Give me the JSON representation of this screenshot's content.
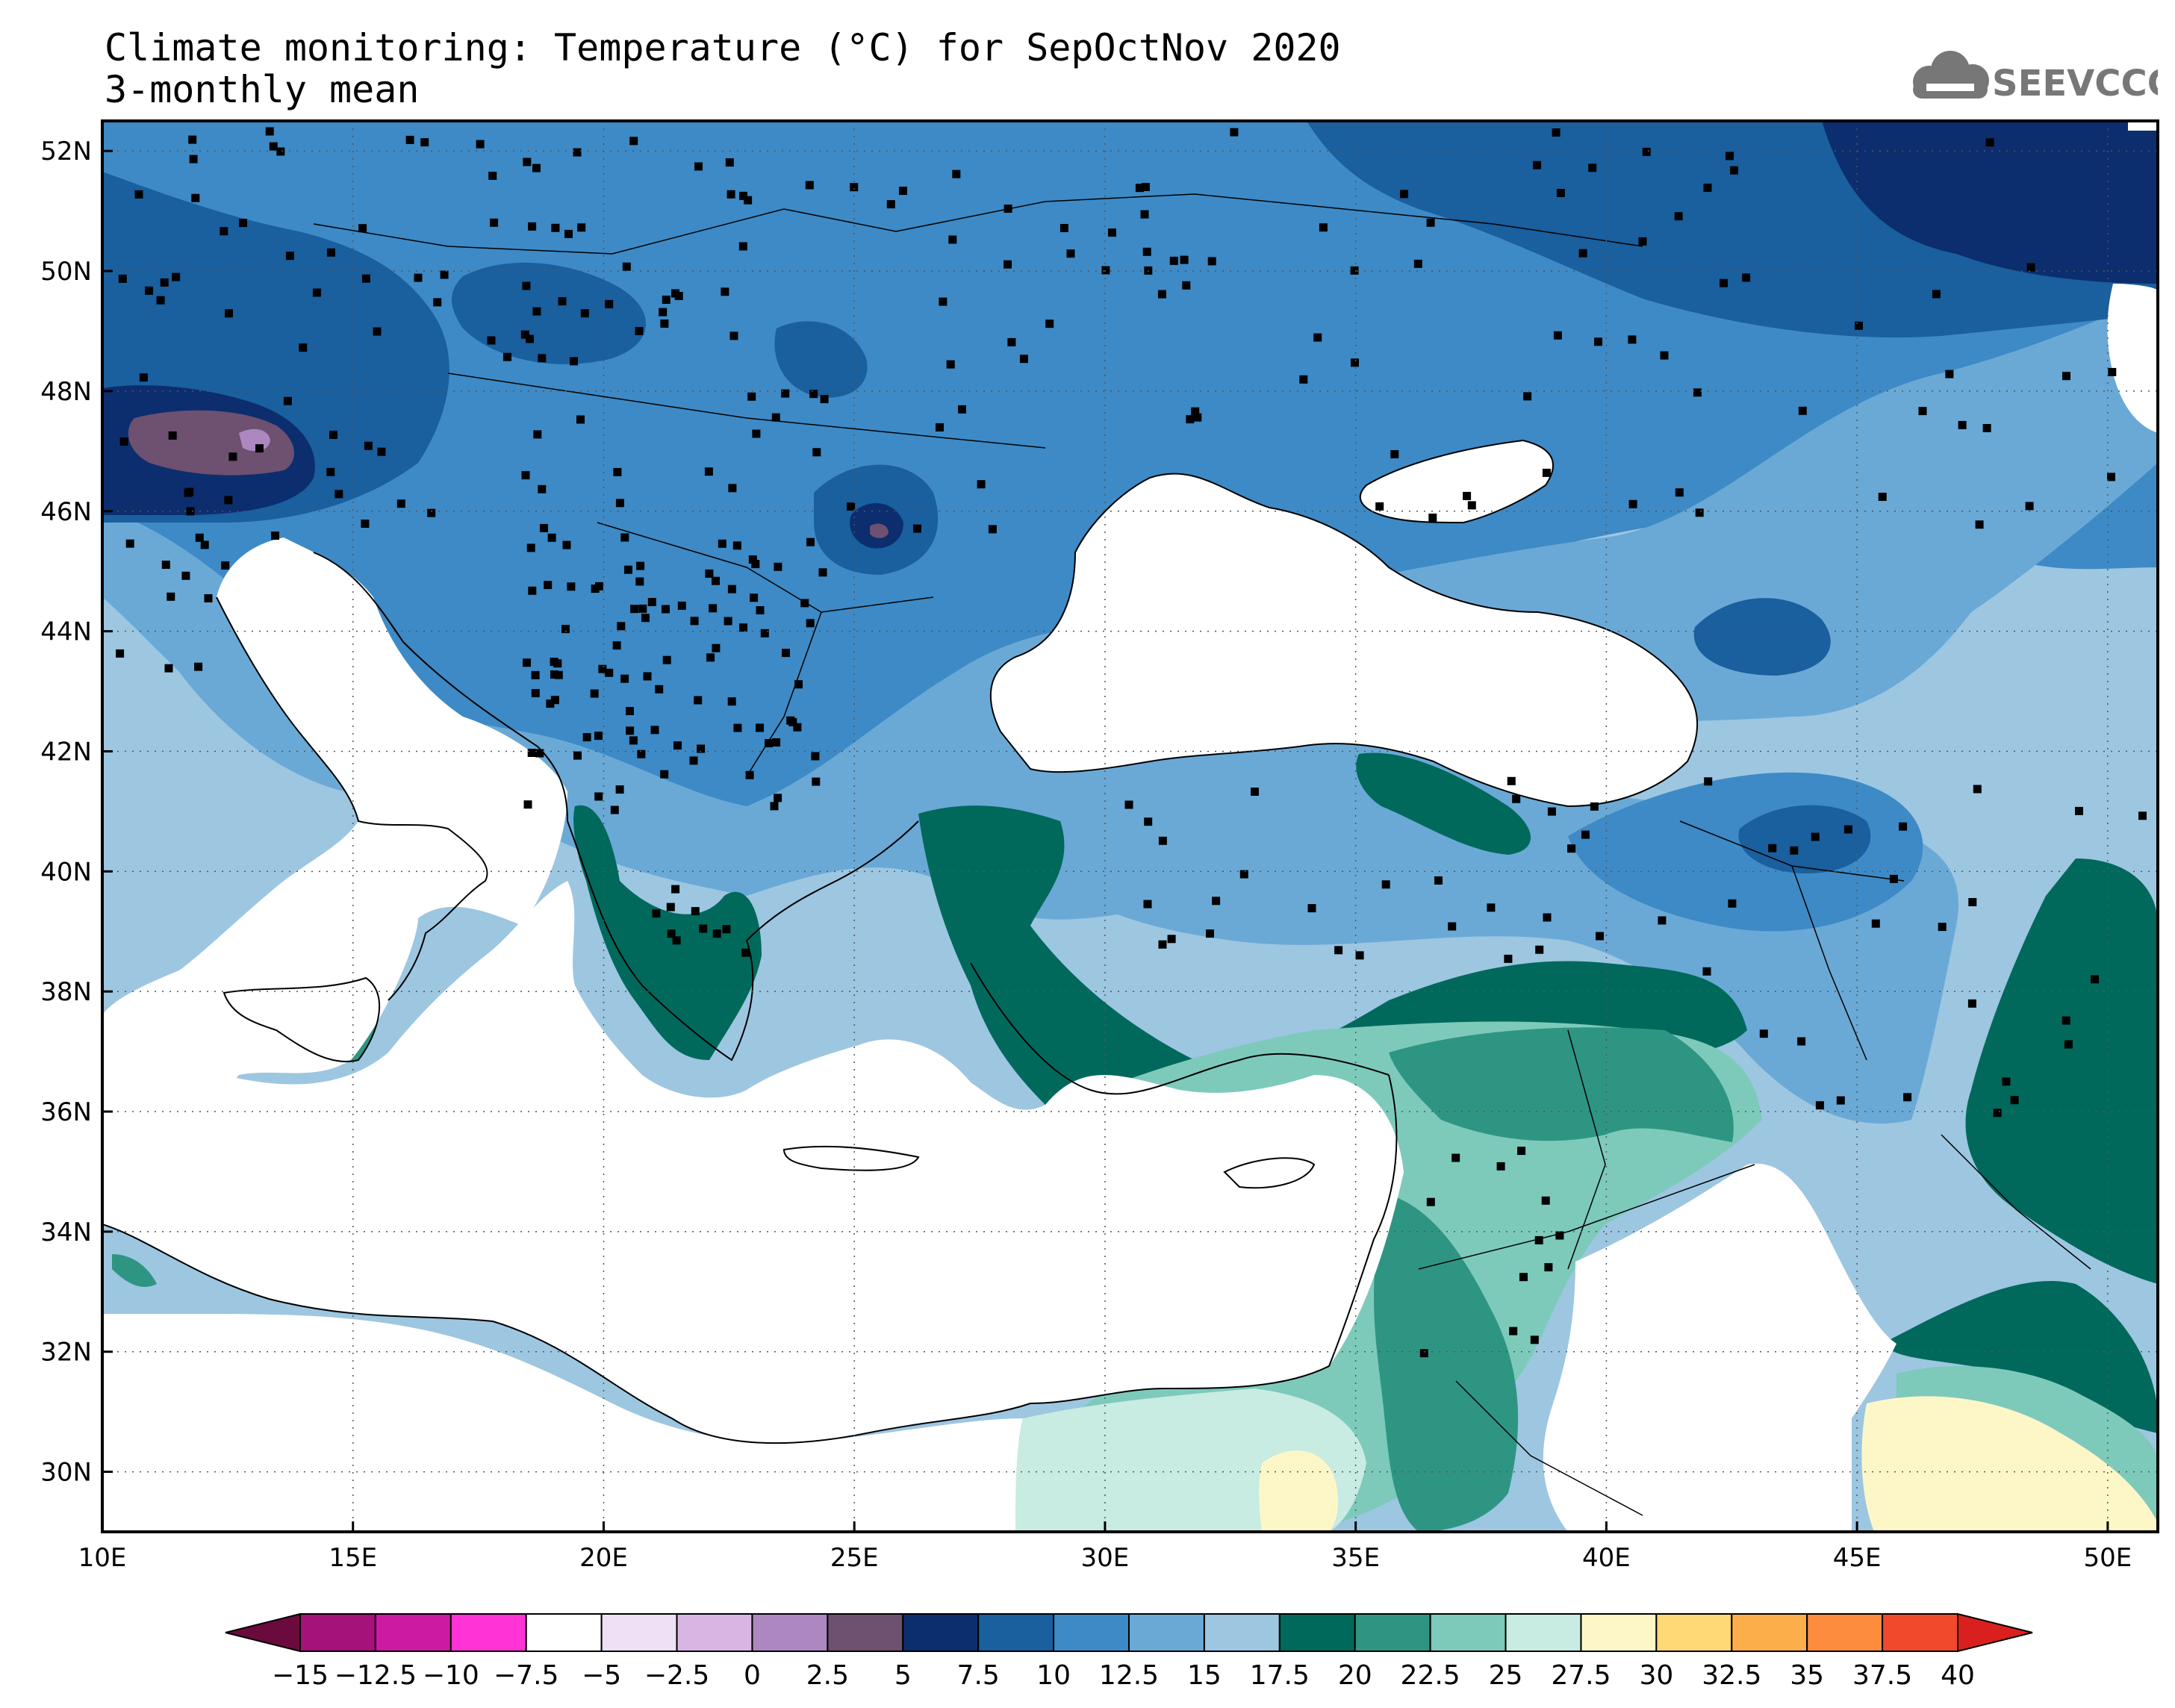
{
  "title": "Climate monitoring: Temperature (°C) for SepOctNov 2020",
  "subtitle": "3-monthly mean",
  "logo": {
    "text": "SEEVCCC",
    "icon": "cloud-logo-icon"
  },
  "map": {
    "lon_range": [
      10,
      51
    ],
    "lat_range": [
      29,
      52.5
    ],
    "lon_ticks": [
      "10E",
      "15E",
      "20E",
      "25E",
      "30E",
      "35E",
      "40E",
      "45E",
      "50E"
    ],
    "lat_ticks": [
      "30N",
      "32N",
      "34N",
      "36N",
      "38N",
      "40N",
      "42N",
      "44N",
      "46N",
      "48N",
      "50N",
      "52N"
    ],
    "grid": "dotted"
  },
  "colorbar": {
    "labels": [
      "-15",
      "-12.5",
      "-10",
      "-7.5",
      "-5",
      "-2.5",
      "0",
      "2.5",
      "5",
      "7.5",
      "10",
      "12.5",
      "15",
      "17.5",
      "20",
      "22.5",
      "25",
      "27.5",
      "30",
      "32.5",
      "35",
      "37.5",
      "40"
    ],
    "colors": [
      "#6b0a3c",
      "#a5127a",
      "#cc1aa3",
      "#ff33d6",
      "#ffffff",
      "#f0e0f5",
      "#d8b5e3",
      "#ad87bf",
      "#6e5070",
      "#0c2e6e",
      "#1a5f9e",
      "#3d8ac6",
      "#6aa9d6",
      "#9dc6e1",
      "#00695c",
      "#2f9583",
      "#7dcabb",
      "#c8ebe2",
      "#fdf7c8",
      "#fed976",
      "#fcae4b",
      "#fd8d3c",
      "#f0492c",
      "#d9201f"
    ]
  },
  "legend_colors": {
    "c5_7_5": "#0c2e6e",
    "c7_5_10": "#1a5f9e",
    "c10_12_5": "#3d8ac6",
    "c12_5_15": "#6aa9d6",
    "c15_17_5": "#9dc6e1",
    "c17_5_20": "#00695c",
    "c20_22_5": "#2f9583",
    "c22_5_25": "#7dcabb",
    "c25_27_5": "#c8ebe2",
    "c27_5_30": "#fdf7c8",
    "c2_5_5": "#6e5070",
    "c0_2_5": "#ad87bf"
  }
}
